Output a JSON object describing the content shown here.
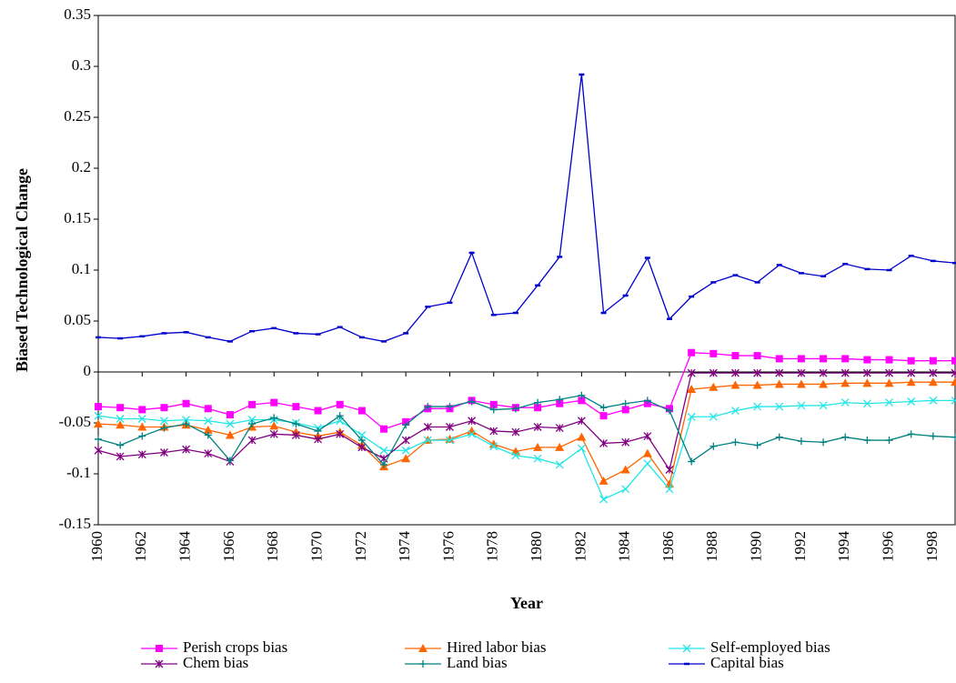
{
  "chart_data": {
    "type": "line",
    "x_label": "Year",
    "y_label": "Biased Technological Change",
    "x": [
      1960,
      1961,
      1962,
      1963,
      1964,
      1965,
      1966,
      1967,
      1968,
      1969,
      1970,
      1971,
      1972,
      1973,
      1974,
      1975,
      1976,
      1977,
      1978,
      1979,
      1980,
      1981,
      1982,
      1983,
      1984,
      1985,
      1986,
      1987,
      1988,
      1989,
      1990,
      1991,
      1992,
      1993,
      1994,
      1995,
      1996,
      1997,
      1998,
      1999
    ],
    "xlim": [
      1960,
      1999
    ],
    "xticks": [
      1960,
      1962,
      1964,
      1966,
      1968,
      1970,
      1972,
      1974,
      1976,
      1978,
      1980,
      1982,
      1984,
      1986,
      1988,
      1990,
      1992,
      1994,
      1996,
      1998
    ],
    "ylim": [
      -0.15,
      0.35
    ],
    "yticks": [
      -0.15,
      -0.1,
      -0.05,
      0,
      0.05,
      0.1,
      0.15,
      0.2,
      0.25,
      0.3,
      0.35
    ],
    "series": [
      {
        "name": "Perish crops bias",
        "color": "#ff00ff",
        "marker": "square",
        "values": [
          -0.034,
          -0.035,
          -0.037,
          -0.035,
          -0.031,
          -0.036,
          -0.042,
          -0.032,
          -0.03,
          -0.034,
          -0.038,
          -0.032,
          -0.038,
          -0.056,
          -0.049,
          -0.036,
          -0.036,
          -0.028,
          -0.032,
          -0.035,
          -0.035,
          -0.031,
          -0.028,
          -0.043,
          -0.037,
          -0.031,
          -0.036,
          0.019,
          0.018,
          0.016,
          0.016,
          0.013,
          0.013,
          0.013,
          0.013,
          0.012,
          0.012,
          0.011,
          0.011,
          0.011
        ]
      },
      {
        "name": "Hired labor bias",
        "color": "#ff6600",
        "marker": "triangle",
        "values": [
          -0.051,
          -0.052,
          -0.054,
          -0.054,
          -0.052,
          -0.057,
          -0.062,
          -0.054,
          -0.053,
          -0.059,
          -0.063,
          -0.059,
          -0.072,
          -0.093,
          -0.085,
          -0.067,
          -0.066,
          -0.058,
          -0.071,
          -0.078,
          -0.074,
          -0.074,
          -0.064,
          -0.107,
          -0.096,
          -0.08,
          -0.11,
          -0.017,
          -0.015,
          -0.013,
          -0.013,
          -0.012,
          -0.012,
          -0.012,
          -0.011,
          -0.011,
          -0.011,
          -0.01,
          -0.01,
          -0.01
        ]
      },
      {
        "name": "Self-employed bias",
        "color": "#22e6e6",
        "marker": "x",
        "values": [
          -0.043,
          -0.046,
          -0.046,
          -0.048,
          -0.047,
          -0.048,
          -0.051,
          -0.047,
          -0.047,
          -0.05,
          -0.055,
          -0.048,
          -0.062,
          -0.077,
          -0.077,
          -0.067,
          -0.067,
          -0.061,
          -0.073,
          -0.082,
          -0.085,
          -0.091,
          -0.075,
          -0.125,
          -0.115,
          -0.09,
          -0.115,
          -0.044,
          -0.044,
          -0.038,
          -0.034,
          -0.034,
          -0.033,
          -0.033,
          -0.03,
          -0.031,
          -0.03,
          -0.029,
          -0.028,
          -0.028
        ]
      },
      {
        "name": "Chem bias",
        "color": "#800080",
        "marker": "asterisk",
        "values": [
          -0.077,
          -0.083,
          -0.081,
          -0.079,
          -0.076,
          -0.08,
          -0.088,
          -0.067,
          -0.061,
          -0.062,
          -0.066,
          -0.061,
          -0.074,
          -0.085,
          -0.067,
          -0.054,
          -0.054,
          -0.048,
          -0.058,
          -0.059,
          -0.054,
          -0.055,
          -0.048,
          -0.07,
          -0.069,
          -0.063,
          -0.096,
          -0.001,
          -0.001,
          -0.001,
          -0.001,
          -0.001,
          -0.001,
          -0.001,
          -0.001,
          -0.001,
          -0.001,
          -0.001,
          -0.001,
          -0.001
        ]
      },
      {
        "name": "Land bias",
        "color": "#008080",
        "marker": "plus",
        "values": [
          -0.066,
          -0.072,
          -0.063,
          -0.055,
          -0.051,
          -0.062,
          -0.087,
          -0.051,
          -0.045,
          -0.051,
          -0.058,
          -0.043,
          -0.067,
          -0.091,
          -0.052,
          -0.034,
          -0.034,
          -0.029,
          -0.037,
          -0.036,
          -0.03,
          -0.027,
          -0.023,
          -0.035,
          -0.031,
          -0.028,
          -0.038,
          -0.088,
          -0.073,
          -0.069,
          -0.072,
          -0.064,
          -0.068,
          -0.069,
          -0.064,
          -0.067,
          -0.067,
          -0.061,
          -0.063,
          -0.064
        ]
      },
      {
        "name": "Capital bias",
        "color": "#0000cc",
        "marker": "dash",
        "values": [
          0.034,
          0.033,
          0.035,
          0.038,
          0.039,
          0.034,
          0.03,
          0.04,
          0.043,
          0.038,
          0.037,
          0.044,
          0.034,
          0.03,
          0.038,
          0.064,
          0.068,
          0.117,
          0.056,
          0.058,
          0.085,
          0.113,
          0.292,
          0.058,
          0.075,
          0.112,
          0.052,
          0.074,
          0.088,
          0.095,
          0.088,
          0.105,
          0.097,
          0.094,
          0.106,
          0.101,
          0.1,
          0.114,
          0.109,
          0.107
        ]
      }
    ]
  }
}
